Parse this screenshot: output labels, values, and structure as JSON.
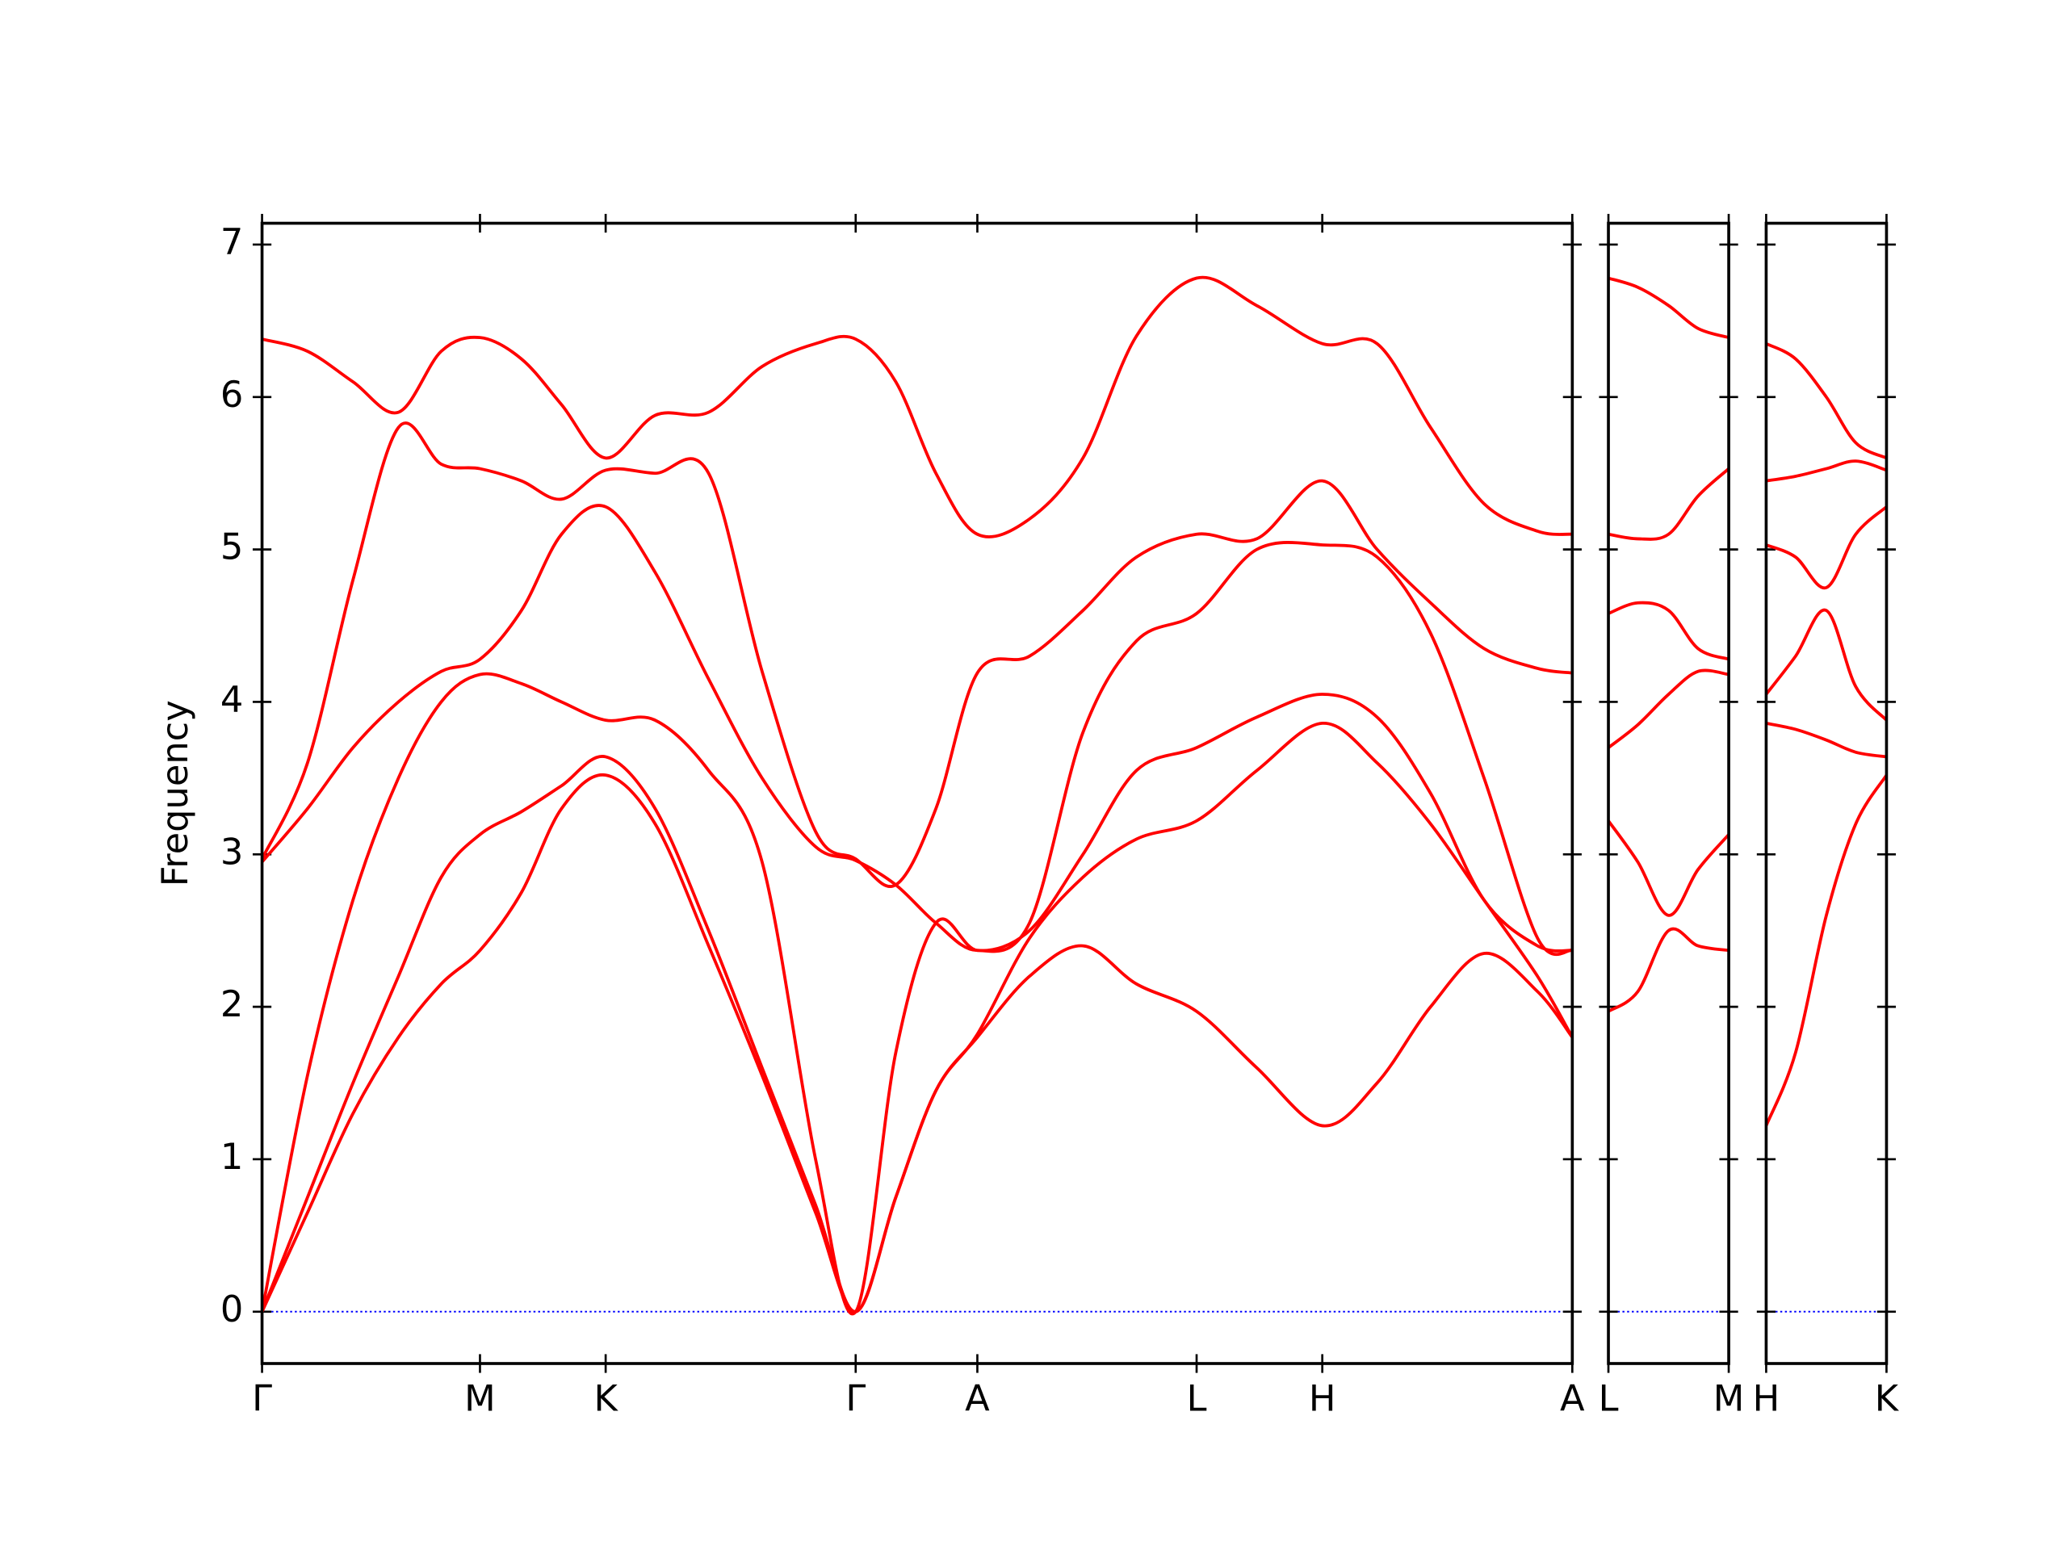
{
  "chart_data": [
    {
      "type": "line",
      "ylabel": "Frequency",
      "zero_line_color": "#0000ff",
      "x": [
        0,
        0.34,
        0.68,
        1.02,
        1.34,
        1.63,
        1.94,
        2.24,
        2.57,
        2.94,
        3.34,
        3.74,
        4.14,
        4.44,
        4.74,
        5.04,
        5.35,
        5.74,
        6.14,
        6.54,
        6.99,
        7.44,
        7.93,
        8.34,
        8.74,
        9.14,
        9.54,
        9.8
      ],
      "xlim": [
        0,
        9.8
      ],
      "xticks": [
        {
          "value": 0,
          "label": "Γ"
        },
        {
          "value": 1.63,
          "label": "M"
        },
        {
          "value": 2.57,
          "label": "K"
        },
        {
          "value": 4.44,
          "label": "Γ"
        },
        {
          "value": 5.35,
          "label": "A"
        },
        {
          "value": 6.99,
          "label": "L"
        },
        {
          "value": 7.93,
          "label": "H"
        },
        {
          "value": 9.8,
          "label": "A"
        }
      ],
      "ylim": [
        -0.34,
        7.14
      ],
      "yticks": [
        0,
        1,
        2,
        3,
        4,
        5,
        6,
        7
      ],
      "series": [
        {
          "color": "#ff0000",
          "values": [
            0,
            0.65,
            1.3,
            1.8,
            2.15,
            2.37,
            2.75,
            3.3,
            3.52,
            3.2,
            2.4,
            1.55,
            0.65,
            0,
            0.75,
            1.45,
            1.8,
            2.2,
            2.4,
            2.15,
            1.97,
            1.6,
            1.22,
            1.5,
            2.0,
            2.35,
            2.1,
            1.8
          ]
        },
        {
          "color": "#ff0000",
          "values": [
            0,
            0.75,
            1.5,
            2.2,
            2.85,
            3.13,
            3.28,
            3.45,
            3.64,
            3.3,
            2.5,
            1.6,
            0.7,
            0,
            0.75,
            1.45,
            1.82,
            2.45,
            2.85,
            3.1,
            3.22,
            3.55,
            3.86,
            3.6,
            3.2,
            2.7,
            2.2,
            1.8
          ]
        },
        {
          "color": "#ff0000",
          "values": [
            0,
            1.55,
            2.7,
            3.5,
            4.0,
            4.18,
            4.12,
            4.0,
            3.88,
            3.88,
            3.55,
            2.95,
            1.0,
            0,
            1.7,
            2.55,
            2.37,
            2.5,
            3.0,
            3.55,
            3.7,
            3.9,
            4.05,
            3.9,
            3.4,
            2.7,
            2.4,
            2.37
          ]
        },
        {
          "color": "#ff0000",
          "values": [
            2.95,
            3.3,
            3.7,
            4.0,
            4.2,
            4.28,
            4.6,
            5.1,
            5.28,
            4.85,
            4.15,
            3.5,
            3.05,
            2.96,
            2.8,
            2.55,
            2.37,
            2.55,
            3.8,
            4.4,
            4.58,
            5.0,
            5.03,
            4.95,
            4.45,
            3.5,
            2.45,
            2.37
          ]
        },
        {
          "color": "#ff0000",
          "values": [
            2.97,
            3.6,
            4.8,
            5.8,
            5.56,
            5.53,
            5.45,
            5.33,
            5.52,
            5.5,
            5.5,
            4.2,
            3.15,
            2.97,
            2.8,
            3.3,
            4.19,
            4.3,
            4.6,
            4.95,
            5.1,
            5.07,
            5.45,
            5.0,
            4.65,
            4.35,
            4.22,
            4.19
          ]
        },
        {
          "color": "#ff0000",
          "values": [
            6.38,
            6.3,
            6.1,
            5.9,
            6.3,
            6.39,
            6.25,
            5.95,
            5.6,
            5.88,
            5.9,
            6.2,
            6.35,
            6.38,
            6.1,
            5.5,
            5.1,
            5.2,
            5.6,
            6.4,
            6.78,
            6.6,
            6.35,
            6.35,
            5.8,
            5.3,
            5.12,
            5.1
          ]
        }
      ]
    },
    {
      "type": "line",
      "zero_line_color": "#0000ff",
      "x": [
        0,
        0.22,
        0.45,
        0.67,
        0.9
      ],
      "xlim": [
        0,
        0.9
      ],
      "xticks": [
        {
          "value": 0,
          "label": "L"
        },
        {
          "value": 0.9,
          "label": "M"
        }
      ],
      "ylim": [
        -0.34,
        7.14
      ],
      "yticks": [
        0,
        1,
        2,
        3,
        4,
        5,
        6,
        7
      ],
      "series": [
        {
          "color": "#ff0000",
          "values": [
            1.97,
            2.1,
            2.5,
            2.4,
            2.37
          ]
        },
        {
          "color": "#ff0000",
          "values": [
            3.22,
            2.95,
            2.6,
            2.9,
            3.13
          ]
        },
        {
          "color": "#ff0000",
          "values": [
            3.7,
            3.85,
            4.05,
            4.2,
            4.18
          ]
        },
        {
          "color": "#ff0000",
          "values": [
            4.58,
            4.65,
            4.6,
            4.35,
            4.28
          ]
        },
        {
          "color": "#ff0000",
          "values": [
            5.1,
            5.07,
            5.1,
            5.35,
            5.53
          ]
        },
        {
          "color": "#ff0000",
          "values": [
            6.78,
            6.72,
            6.6,
            6.45,
            6.39
          ]
        }
      ]
    },
    {
      "type": "line",
      "zero_line_color": "#0000ff",
      "x": [
        0,
        0.22,
        0.45,
        0.67,
        0.9
      ],
      "xlim": [
        0,
        0.9
      ],
      "xticks": [
        {
          "value": 0,
          "label": "H"
        },
        {
          "value": 0.9,
          "label": "K"
        }
      ],
      "ylim": [
        -0.34,
        7.14
      ],
      "yticks": [
        0,
        1,
        2,
        3,
        4,
        5,
        6,
        7
      ],
      "series": [
        {
          "color": "#ff0000",
          "values": [
            1.22,
            1.7,
            2.6,
            3.2,
            3.52
          ]
        },
        {
          "color": "#ff0000",
          "values": [
            3.86,
            3.82,
            3.75,
            3.67,
            3.64
          ]
        },
        {
          "color": "#ff0000",
          "values": [
            4.05,
            4.3,
            4.6,
            4.1,
            3.88
          ]
        },
        {
          "color": "#ff0000",
          "values": [
            5.03,
            4.95,
            4.75,
            5.1,
            5.28
          ]
        },
        {
          "color": "#ff0000",
          "values": [
            5.45,
            5.48,
            5.53,
            5.58,
            5.52
          ]
        },
        {
          "color": "#ff0000",
          "values": [
            6.35,
            6.25,
            6.0,
            5.7,
            5.6
          ]
        }
      ]
    }
  ]
}
